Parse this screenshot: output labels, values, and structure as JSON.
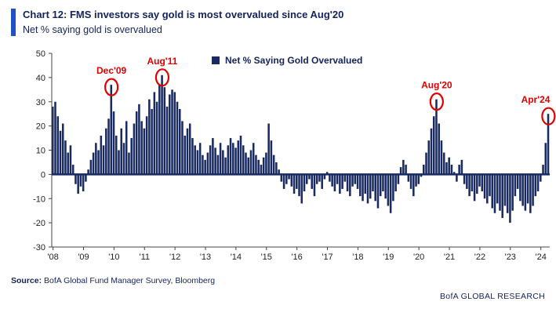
{
  "header": {
    "title": "Chart 12: FMS investors say gold is most overvalued since Aug'20",
    "subtitle": "Net % saying gold is overvalued"
  },
  "footer": {
    "source_label": "Source:",
    "source_text": " BofA Global Fund Manager Survey, Bloomberg",
    "brand": "BofA GLOBAL RESEARCH"
  },
  "colors": {
    "bar": "#182a60",
    "zero_line": "#182a60",
    "axis": "#444444",
    "annotation": "#e00000",
    "accent_blue": "#2151c4",
    "navy_text": "#14235a"
  },
  "chart_data": {
    "type": "bar",
    "title": "Chart 12: FMS investors say gold is most overvalued since Aug'20",
    "subtitle": "Net % saying gold is overvalued",
    "ylabel": "Net % saying gold is overvalued",
    "xlabel": "",
    "frequency": "monthly",
    "x_start": "2008-01",
    "x_end": "2024-04",
    "ylim": [
      -30,
      50
    ],
    "yticks": [
      50,
      40,
      30,
      20,
      10,
      0,
      -10,
      -20,
      -30
    ],
    "grid": false,
    "legend": [
      "Net % Saying Gold Overvalued"
    ],
    "legend_position": "top-center",
    "x_tick_labels": [
      "'08",
      "'09",
      "'10",
      "'11",
      "'12",
      "'13",
      "'14",
      "'15",
      "'16",
      "'17",
      "'18",
      "'19",
      "'20",
      "'21",
      "'22",
      "'23",
      "'24"
    ],
    "values": [
      28,
      30,
      24,
      18,
      21,
      14,
      9,
      12,
      4,
      -4,
      -8,
      -5,
      -7,
      -3,
      2,
      6,
      9,
      13,
      10,
      16,
      12,
      19,
      23,
      37,
      26,
      16,
      10,
      19,
      13,
      22,
      9,
      15,
      21,
      26,
      29,
      22,
      19,
      24,
      31,
      27,
      34,
      30,
      37,
      41,
      36,
      28,
      33,
      35,
      34,
      30,
      27,
      22,
      16,
      19,
      21,
      15,
      12,
      10,
      13,
      8,
      6,
      9,
      12,
      15,
      11,
      8,
      13,
      10,
      7,
      12,
      15,
      13,
      11,
      14,
      16,
      12,
      9,
      7,
      10,
      13,
      8,
      6,
      4,
      7,
      9,
      21,
      14,
      8,
      5,
      2,
      -3,
      -6,
      -4,
      -2,
      -5,
      -8,
      -6,
      -9,
      -12,
      -7,
      -4,
      -2,
      -6,
      -9,
      -4,
      -3,
      -6,
      -2,
      1,
      -3,
      -5,
      -7,
      -4,
      -8,
      -6,
      -3,
      -7,
      -9,
      -5,
      -4,
      -6,
      -9,
      -11,
      -8,
      -12,
      -10,
      -7,
      -11,
      -14,
      -9,
      -7,
      -10,
      -13,
      -16,
      -11,
      -7,
      -4,
      3,
      6,
      4,
      -3,
      -6,
      -9,
      -5,
      -4,
      -1,
      4,
      9,
      14,
      19,
      24,
      31,
      21,
      14,
      9,
      5,
      7,
      4,
      1,
      -3,
      4,
      6,
      -4,
      -6,
      -9,
      -7,
      -11,
      -8,
      -5,
      -7,
      -10,
      -12,
      -9,
      -14,
      -16,
      -12,
      -15,
      -18,
      -13,
      -16,
      -20,
      -15,
      -9,
      -6,
      -11,
      -13,
      -15,
      -12,
      -16,
      -13,
      -9,
      -7,
      -3,
      4,
      13,
      25
    ],
    "annotations": [
      {
        "label": "Dec'09",
        "month": "2009-12",
        "index": 23,
        "value": 37
      },
      {
        "label": "Aug'11",
        "month": "2011-08",
        "index": 43,
        "value": 41
      },
      {
        "label": "Aug'20",
        "month": "2020-08",
        "index": 151,
        "value": 31
      },
      {
        "label": "Apr'24",
        "month": "2024-04",
        "index": 195,
        "value": 25
      }
    ]
  }
}
